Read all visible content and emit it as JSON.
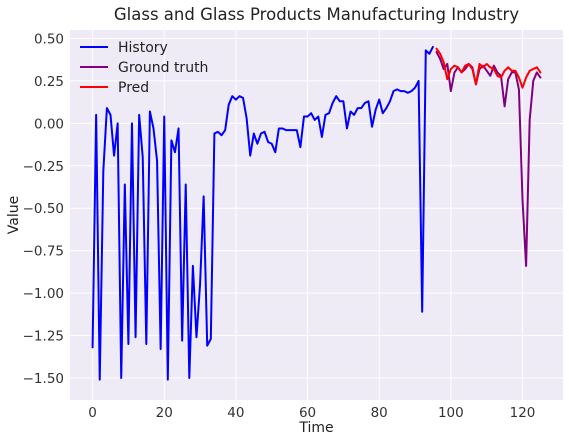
{
  "chart_data": {
    "type": "line",
    "title": "Glass and Glass Products Manufacturing Industry",
    "xlabel": "Time",
    "ylabel": "Value",
    "xlim": [
      -6.3,
      131.3
    ],
    "ylim": [
      -1.63,
      0.55
    ],
    "xticks": [
      0,
      20,
      40,
      60,
      80,
      100,
      120
    ],
    "xtick_labels": [
      "0",
      "20",
      "40",
      "60",
      "80",
      "100",
      "120"
    ],
    "yticks": [
      -1.5,
      -1.25,
      -1.0,
      -0.75,
      -0.5,
      -0.25,
      0.0,
      0.25,
      0.5
    ],
    "ytick_labels": [
      "−1.50",
      "−1.25",
      "−1.00",
      "−0.75",
      "−0.50",
      "−0.25",
      "0.00",
      "0.25",
      "0.50"
    ],
    "grid": true,
    "legend_position": "top-left",
    "background": "#EEEBF6",
    "series": [
      {
        "name": "History",
        "color": "#0000FF",
        "x_start": 0,
        "values": [
          -1.32,
          0.05,
          -1.51,
          -0.28,
          0.09,
          0.05,
          -0.19,
          0.0,
          -1.5,
          -0.36,
          -1.3,
          0.0,
          -1.26,
          0.05,
          -0.2,
          -1.3,
          0.07,
          -0.03,
          -0.22,
          -1.33,
          0.04,
          -1.51,
          -0.1,
          -0.17,
          -0.03,
          -1.28,
          -0.36,
          -1.5,
          -0.84,
          -1.26,
          -0.95,
          -0.43,
          -1.31,
          -1.27,
          -0.06,
          -0.05,
          -0.07,
          -0.04,
          0.11,
          0.16,
          0.14,
          0.16,
          0.15,
          0.03,
          -0.19,
          -0.06,
          -0.12,
          -0.06,
          -0.05,
          -0.11,
          -0.12,
          -0.17,
          -0.03,
          -0.03,
          -0.04,
          -0.04,
          -0.04,
          -0.04,
          -0.14,
          0.04,
          0.04,
          0.06,
          0.02,
          0.04,
          -0.08,
          0.05,
          0.06,
          0.12,
          0.16,
          0.13,
          0.13,
          -0.03,
          0.07,
          0.05,
          0.09,
          0.09,
          0.12,
          0.13,
          -0.02,
          0.08,
          0.14,
          0.06,
          0.09,
          0.13,
          0.19,
          0.2,
          0.19,
          0.19,
          0.18,
          0.19,
          0.21,
          0.25,
          -1.11,
          0.43,
          0.41,
          0.45
        ]
      },
      {
        "name": "Ground truth",
        "color": "#800080",
        "x_start": 96,
        "values": [
          0.42,
          0.38,
          0.32,
          0.35,
          0.19,
          0.3,
          0.33,
          0.3,
          0.32,
          0.35,
          0.33,
          0.23,
          0.32,
          0.34,
          0.31,
          0.28,
          0.34,
          0.3,
          0.28,
          0.1,
          0.26,
          0.3,
          0.3,
          0.2,
          -0.45,
          -0.84,
          0.02,
          0.25,
          0.3,
          0.27
        ]
      },
      {
        "name": "Pred",
        "color": "#FF0000",
        "x_start": 96,
        "values": [
          0.44,
          0.41,
          0.36,
          0.26,
          0.32,
          0.34,
          0.33,
          0.3,
          0.34,
          0.35,
          0.32,
          0.23,
          0.35,
          0.33,
          0.35,
          0.33,
          0.32,
          0.28,
          0.27,
          0.31,
          0.33,
          0.31,
          0.31,
          0.27,
          0.21,
          0.27,
          0.31,
          0.32,
          0.33,
          0.3
        ]
      }
    ]
  }
}
